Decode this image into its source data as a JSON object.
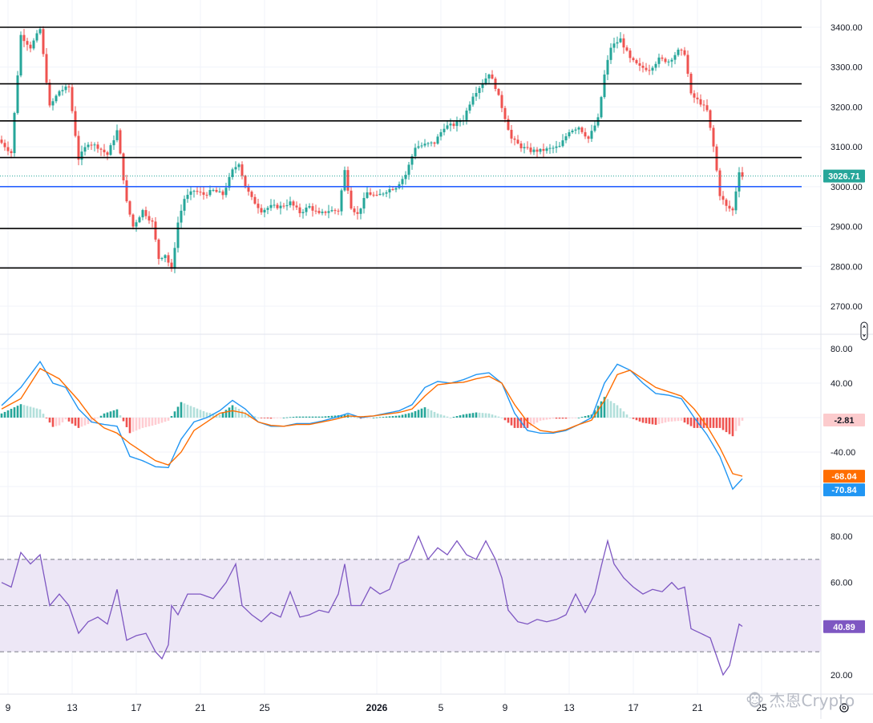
{
  "chart_data": [
    {
      "type": "candlestick",
      "panel": "price",
      "y_ticks": [
        "3400.00",
        "3300.00",
        "3200.00",
        "3100.00",
        "3000.00",
        "2900.00",
        "2800.00",
        "2700.00"
      ],
      "ylim": [
        2640,
        3460
      ],
      "last_price": 3026.71,
      "last_price_label": "3026.71",
      "horizontal_lines": [
        {
          "value": 3400,
          "color": "#000000"
        },
        {
          "value": 3258,
          "color": "#000000"
        },
        {
          "value": 3165,
          "color": "#000000"
        },
        {
          "value": 3073,
          "color": "#000000"
        },
        {
          "value": 3000,
          "color": "#2962ff"
        },
        {
          "value": 2895,
          "color": "#000000"
        },
        {
          "value": 2796,
          "color": "#000000"
        }
      ],
      "anchors": [
        {
          "t": 0,
          "p": 3110
        },
        {
          "t": 3,
          "p": 3085
        },
        {
          "t": 6,
          "p": 3380
        },
        {
          "t": 9,
          "p": 3350
        },
        {
          "t": 12,
          "p": 3395
        },
        {
          "t": 15,
          "p": 3200
        },
        {
          "t": 18,
          "p": 3240
        },
        {
          "t": 21,
          "p": 3250
        },
        {
          "t": 24,
          "p": 3070
        },
        {
          "t": 27,
          "p": 3110
        },
        {
          "t": 30,
          "p": 3100
        },
        {
          "t": 33,
          "p": 3080
        },
        {
          "t": 36,
          "p": 3140
        },
        {
          "t": 39,
          "p": 2960
        },
        {
          "t": 41,
          "p": 2900
        },
        {
          "t": 44,
          "p": 2940
        },
        {
          "t": 47,
          "p": 2910
        },
        {
          "t": 49,
          "p": 2820
        },
        {
          "t": 51,
          "p": 2830
        },
        {
          "t": 53,
          "p": 2790
        },
        {
          "t": 55,
          "p": 2910
        },
        {
          "t": 57,
          "p": 2970
        },
        {
          "t": 60,
          "p": 2990
        },
        {
          "t": 63,
          "p": 2980
        },
        {
          "t": 66,
          "p": 2990
        },
        {
          "t": 69,
          "p": 2980
        },
        {
          "t": 72,
          "p": 3040
        },
        {
          "t": 74,
          "p": 3060
        },
        {
          "t": 76,
          "p": 3000
        },
        {
          "t": 78,
          "p": 2970
        },
        {
          "t": 81,
          "p": 2940
        },
        {
          "t": 84,
          "p": 2950
        },
        {
          "t": 87,
          "p": 2950
        },
        {
          "t": 90,
          "p": 2960
        },
        {
          "t": 93,
          "p": 2935
        },
        {
          "t": 96,
          "p": 2950
        },
        {
          "t": 99,
          "p": 2930
        },
        {
          "t": 102,
          "p": 2940
        },
        {
          "t": 105,
          "p": 2940
        },
        {
          "t": 107,
          "p": 3040
        },
        {
          "t": 109,
          "p": 2950
        },
        {
          "t": 111,
          "p": 2930
        },
        {
          "t": 114,
          "p": 2985
        },
        {
          "t": 117,
          "p": 2975
        },
        {
          "t": 120,
          "p": 2990
        },
        {
          "t": 123,
          "p": 3000
        },
        {
          "t": 126,
          "p": 3030
        },
        {
          "t": 129,
          "p": 3100
        },
        {
          "t": 132,
          "p": 3105
        },
        {
          "t": 135,
          "p": 3110
        },
        {
          "t": 138,
          "p": 3150
        },
        {
          "t": 141,
          "p": 3155
        },
        {
          "t": 144,
          "p": 3170
        },
        {
          "t": 147,
          "p": 3230
        },
        {
          "t": 150,
          "p": 3260
        },
        {
          "t": 152,
          "p": 3285
        },
        {
          "t": 154,
          "p": 3250
        },
        {
          "t": 156,
          "p": 3200
        },
        {
          "t": 159,
          "p": 3120
        },
        {
          "t": 162,
          "p": 3100
        },
        {
          "t": 165,
          "p": 3090
        },
        {
          "t": 168,
          "p": 3090
        },
        {
          "t": 171,
          "p": 3095
        },
        {
          "t": 174,
          "p": 3100
        },
        {
          "t": 177,
          "p": 3140
        },
        {
          "t": 180,
          "p": 3150
        },
        {
          "t": 183,
          "p": 3120
        },
        {
          "t": 186,
          "p": 3170
        },
        {
          "t": 188,
          "p": 3280
        },
        {
          "t": 190,
          "p": 3350
        },
        {
          "t": 193,
          "p": 3370
        },
        {
          "t": 196,
          "p": 3320
        },
        {
          "t": 199,
          "p": 3300
        },
        {
          "t": 202,
          "p": 3295
        },
        {
          "t": 205,
          "p": 3320
        },
        {
          "t": 208,
          "p": 3315
        },
        {
          "t": 211,
          "p": 3340
        },
        {
          "t": 213,
          "p": 3335
        },
        {
          "t": 215,
          "p": 3230
        },
        {
          "t": 218,
          "p": 3210
        },
        {
          "t": 220,
          "p": 3190
        },
        {
          "t": 222,
          "p": 3100
        },
        {
          "t": 224,
          "p": 2980
        },
        {
          "t": 226,
          "p": 2950
        },
        {
          "t": 228,
          "p": 2940
        },
        {
          "t": 230,
          "p": 3040
        },
        {
          "t": 231,
          "p": 3026
        }
      ]
    },
    {
      "type": "macd",
      "panel": "indicator",
      "y_ticks": [
        "80.00",
        "40.00",
        "-40.00"
      ],
      "ylim": [
        -100,
        100
      ],
      "labels": {
        "histogram": "-2.81",
        "signal": "-68.04",
        "macd": "-70.84"
      },
      "macd_anchors": [
        {
          "t": 0,
          "v": 14
        },
        {
          "t": 6,
          "v": 35
        },
        {
          "t": 12,
          "v": 65
        },
        {
          "t": 16,
          "v": 40
        },
        {
          "t": 20,
          "v": 35
        },
        {
          "t": 24,
          "v": 10
        },
        {
          "t": 28,
          "v": -5
        },
        {
          "t": 32,
          "v": -8
        },
        {
          "t": 36,
          "v": -10
        },
        {
          "t": 40,
          "v": -45
        },
        {
          "t": 44,
          "v": -50
        },
        {
          "t": 48,
          "v": -57
        },
        {
          "t": 52,
          "v": -58
        },
        {
          "t": 56,
          "v": -25
        },
        {
          "t": 60,
          "v": -5
        },
        {
          "t": 64,
          "v": 0
        },
        {
          "t": 68,
          "v": 8
        },
        {
          "t": 72,
          "v": 20
        },
        {
          "t": 76,
          "v": 10
        },
        {
          "t": 80,
          "v": -5
        },
        {
          "t": 84,
          "v": -10
        },
        {
          "t": 88,
          "v": -10
        },
        {
          "t": 92,
          "v": -7
        },
        {
          "t": 96,
          "v": -7
        },
        {
          "t": 100,
          "v": -4
        },
        {
          "t": 104,
          "v": 0
        },
        {
          "t": 108,
          "v": 5
        },
        {
          "t": 112,
          "v": 0
        },
        {
          "t": 116,
          "v": 2
        },
        {
          "t": 120,
          "v": 5
        },
        {
          "t": 124,
          "v": 8
        },
        {
          "t": 128,
          "v": 15
        },
        {
          "t": 132,
          "v": 35
        },
        {
          "t": 136,
          "v": 42
        },
        {
          "t": 140,
          "v": 40
        },
        {
          "t": 144,
          "v": 44
        },
        {
          "t": 148,
          "v": 50
        },
        {
          "t": 152,
          "v": 52
        },
        {
          "t": 156,
          "v": 40
        },
        {
          "t": 160,
          "v": 5
        },
        {
          "t": 164,
          "v": -15
        },
        {
          "t": 168,
          "v": -18
        },
        {
          "t": 172,
          "v": -18
        },
        {
          "t": 176,
          "v": -15
        },
        {
          "t": 180,
          "v": -8
        },
        {
          "t": 184,
          "v": 0
        },
        {
          "t": 188,
          "v": 40
        },
        {
          "t": 192,
          "v": 62
        },
        {
          "t": 196,
          "v": 55
        },
        {
          "t": 200,
          "v": 40
        },
        {
          "t": 204,
          "v": 28
        },
        {
          "t": 208,
          "v": 26
        },
        {
          "t": 212,
          "v": 22
        },
        {
          "t": 216,
          "v": 0
        },
        {
          "t": 220,
          "v": -20
        },
        {
          "t": 224,
          "v": -45
        },
        {
          "t": 228,
          "v": -83
        },
        {
          "t": 231,
          "v": -71
        }
      ],
      "signal_anchors": [
        {
          "t": 0,
          "v": 10
        },
        {
          "t": 6,
          "v": 22
        },
        {
          "t": 12,
          "v": 57
        },
        {
          "t": 18,
          "v": 45
        },
        {
          "t": 24,
          "v": 20
        },
        {
          "t": 28,
          "v": 0
        },
        {
          "t": 32,
          "v": -12
        },
        {
          "t": 36,
          "v": -18
        },
        {
          "t": 40,
          "v": -30
        },
        {
          "t": 44,
          "v": -40
        },
        {
          "t": 48,
          "v": -50
        },
        {
          "t": 52,
          "v": -55
        },
        {
          "t": 56,
          "v": -40
        },
        {
          "t": 60,
          "v": -15
        },
        {
          "t": 64,
          "v": -5
        },
        {
          "t": 68,
          "v": 5
        },
        {
          "t": 72,
          "v": 8
        },
        {
          "t": 76,
          "v": 5
        },
        {
          "t": 80,
          "v": -5
        },
        {
          "t": 84,
          "v": -9
        },
        {
          "t": 88,
          "v": -10
        },
        {
          "t": 92,
          "v": -8
        },
        {
          "t": 96,
          "v": -8
        },
        {
          "t": 100,
          "v": -5
        },
        {
          "t": 104,
          "v": -2
        },
        {
          "t": 108,
          "v": 2
        },
        {
          "t": 112,
          "v": 1
        },
        {
          "t": 116,
          "v": 2
        },
        {
          "t": 120,
          "v": 4
        },
        {
          "t": 124,
          "v": 6
        },
        {
          "t": 128,
          "v": 10
        },
        {
          "t": 132,
          "v": 25
        },
        {
          "t": 136,
          "v": 38
        },
        {
          "t": 140,
          "v": 40
        },
        {
          "t": 144,
          "v": 41
        },
        {
          "t": 148,
          "v": 45
        },
        {
          "t": 152,
          "v": 48
        },
        {
          "t": 156,
          "v": 40
        },
        {
          "t": 160,
          "v": 15
        },
        {
          "t": 164,
          "v": -5
        },
        {
          "t": 168,
          "v": -15
        },
        {
          "t": 172,
          "v": -17
        },
        {
          "t": 176,
          "v": -14
        },
        {
          "t": 180,
          "v": -8
        },
        {
          "t": 184,
          "v": -3
        },
        {
          "t": 188,
          "v": 20
        },
        {
          "t": 192,
          "v": 50
        },
        {
          "t": 196,
          "v": 55
        },
        {
          "t": 200,
          "v": 45
        },
        {
          "t": 204,
          "v": 35
        },
        {
          "t": 208,
          "v": 30
        },
        {
          "t": 212,
          "v": 25
        },
        {
          "t": 216,
          "v": 10
        },
        {
          "t": 220,
          "v": -10
        },
        {
          "t": 224,
          "v": -35
        },
        {
          "t": 228,
          "v": -65
        },
        {
          "t": 231,
          "v": -68
        }
      ]
    },
    {
      "type": "line",
      "panel": "rsi",
      "y_ticks": [
        "80.00",
        "60.00",
        "20.00"
      ],
      "ylim": [
        15,
        88
      ],
      "band": [
        30,
        70
      ],
      "midline": 50,
      "value_label": "40.89",
      "anchors": [
        {
          "t": 0,
          "v": 60
        },
        {
          "t": 3,
          "v": 58
        },
        {
          "t": 6,
          "v": 73
        },
        {
          "t": 9,
          "v": 68
        },
        {
          "t": 12,
          "v": 72
        },
        {
          "t": 15,
          "v": 50
        },
        {
          "t": 18,
          "v": 55
        },
        {
          "t": 21,
          "v": 50
        },
        {
          "t": 24,
          "v": 38
        },
        {
          "t": 27,
          "v": 43
        },
        {
          "t": 30,
          "v": 45
        },
        {
          "t": 33,
          "v": 42
        },
        {
          "t": 36,
          "v": 57
        },
        {
          "t": 39,
          "v": 35
        },
        {
          "t": 42,
          "v": 37
        },
        {
          "t": 45,
          "v": 38
        },
        {
          "t": 48,
          "v": 30
        },
        {
          "t": 50,
          "v": 27
        },
        {
          "t": 52,
          "v": 33
        },
        {
          "t": 53,
          "v": 50
        },
        {
          "t": 55,
          "v": 46
        },
        {
          "t": 58,
          "v": 55
        },
        {
          "t": 62,
          "v": 55
        },
        {
          "t": 66,
          "v": 53
        },
        {
          "t": 70,
          "v": 60
        },
        {
          "t": 73,
          "v": 68
        },
        {
          "t": 75,
          "v": 50
        },
        {
          "t": 78,
          "v": 46
        },
        {
          "t": 81,
          "v": 43
        },
        {
          "t": 84,
          "v": 47
        },
        {
          "t": 87,
          "v": 45
        },
        {
          "t": 90,
          "v": 56
        },
        {
          "t": 93,
          "v": 45
        },
        {
          "t": 96,
          "v": 46
        },
        {
          "t": 99,
          "v": 48
        },
        {
          "t": 102,
          "v": 47
        },
        {
          "t": 105,
          "v": 55
        },
        {
          "t": 107,
          "v": 68
        },
        {
          "t": 109,
          "v": 50
        },
        {
          "t": 112,
          "v": 50
        },
        {
          "t": 115,
          "v": 58
        },
        {
          "t": 118,
          "v": 55
        },
        {
          "t": 121,
          "v": 57
        },
        {
          "t": 124,
          "v": 68
        },
        {
          "t": 127,
          "v": 70
        },
        {
          "t": 130,
          "v": 80
        },
        {
          "t": 133,
          "v": 70
        },
        {
          "t": 136,
          "v": 75
        },
        {
          "t": 139,
          "v": 72
        },
        {
          "t": 142,
          "v": 78
        },
        {
          "t": 145,
          "v": 72
        },
        {
          "t": 148,
          "v": 70
        },
        {
          "t": 151,
          "v": 78
        },
        {
          "t": 154,
          "v": 70
        },
        {
          "t": 156,
          "v": 62
        },
        {
          "t": 158,
          "v": 48
        },
        {
          "t": 161,
          "v": 43
        },
        {
          "t": 164,
          "v": 42
        },
        {
          "t": 167,
          "v": 44
        },
        {
          "t": 170,
          "v": 43
        },
        {
          "t": 173,
          "v": 44
        },
        {
          "t": 176,
          "v": 46
        },
        {
          "t": 179,
          "v": 55
        },
        {
          "t": 182,
          "v": 47
        },
        {
          "t": 185,
          "v": 55
        },
        {
          "t": 187,
          "v": 67
        },
        {
          "t": 189,
          "v": 78
        },
        {
          "t": 191,
          "v": 68
        },
        {
          "t": 194,
          "v": 62
        },
        {
          "t": 197,
          "v": 58
        },
        {
          "t": 200,
          "v": 55
        },
        {
          "t": 203,
          "v": 57
        },
        {
          "t": 206,
          "v": 56
        },
        {
          "t": 209,
          "v": 60
        },
        {
          "t": 211,
          "v": 57
        },
        {
          "t": 213,
          "v": 58
        },
        {
          "t": 215,
          "v": 40
        },
        {
          "t": 218,
          "v": 38
        },
        {
          "t": 221,
          "v": 36
        },
        {
          "t": 223,
          "v": 28
        },
        {
          "t": 225,
          "v": 20
        },
        {
          "t": 227,
          "v": 24
        },
        {
          "t": 228,
          "v": 30
        },
        {
          "t": 230,
          "v": 42
        },
        {
          "t": 231,
          "v": 41
        }
      ]
    }
  ],
  "x_axis": {
    "ticks": [
      {
        "label": "9",
        "t": 2
      },
      {
        "label": "13",
        "t": 22
      },
      {
        "label": "17",
        "t": 42
      },
      {
        "label": "21",
        "t": 62
      },
      {
        "label": "25",
        "t": 82
      },
      {
        "label": "2026",
        "t": 117,
        "bold": true
      },
      {
        "label": "5",
        "t": 137
      },
      {
        "label": "9",
        "t": 157
      },
      {
        "label": "13",
        "t": 177
      },
      {
        "label": "17",
        "t": 197
      },
      {
        "label": "21",
        "t": 217
      },
      {
        "label": "25",
        "t": 237
      }
    ]
  },
  "colors": {
    "up": "#26a69a",
    "down": "#ef5350",
    "macd_line": "#2196f3",
    "signal_line": "#ff6d00",
    "rsi_line": "#7e57c2",
    "rsi_band": "#ede7f6",
    "level_blue": "#2962ff",
    "price_badge": "#26a69a"
  },
  "footer": {
    "gear_icon": "gear-icon",
    "watermark": "🐵 杰恩Crypto"
  }
}
